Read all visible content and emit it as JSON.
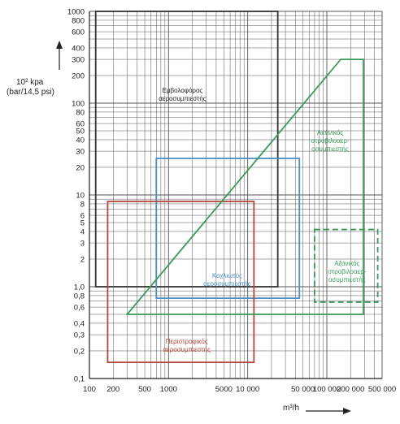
{
  "chart_data": {
    "type": "area",
    "xscale": "log",
    "yscale": "log",
    "xlim": [
      100,
      500000
    ],
    "ylim": [
      0.1,
      1000
    ],
    "grid": true,
    "ylabel_line1": "10² kpa",
    "ylabel_line2": "(bar/14,5  psi)",
    "xunit": "m³/h",
    "x_ticks": [
      {
        "value": 100,
        "label": "100"
      },
      {
        "value": 200,
        "label": "200"
      },
      {
        "value": 500,
        "label": "500"
      },
      {
        "value": 1000,
        "label": "1000"
      },
      {
        "value": 5000,
        "label": "5000"
      },
      {
        "value": 10000,
        "label": "10 000"
      },
      {
        "value": 50000,
        "label": "50 000"
      },
      {
        "value": 100000,
        "label": "100 000"
      },
      {
        "value": 200000,
        "label": "200 000"
      },
      {
        "value": 500000,
        "label": "500 000"
      }
    ],
    "y_ticks": [
      {
        "value": 1000,
        "label": "1000"
      },
      {
        "value": 800,
        "label": "800"
      },
      {
        "value": 600,
        "label": "600"
      },
      {
        "value": 400,
        "label": "400"
      },
      {
        "value": 300,
        "label": "300"
      },
      {
        "value": 200,
        "label": "200"
      },
      {
        "value": 100,
        "label": "100"
      },
      {
        "value": 80,
        "label": "80"
      },
      {
        "value": 60,
        "label": "60"
      },
      {
        "value": 50,
        "label": "50"
      },
      {
        "value": 40,
        "label": "40"
      },
      {
        "value": 30,
        "label": "30"
      },
      {
        "value": 20,
        "label": "20"
      },
      {
        "value": 10,
        "label": "10"
      },
      {
        "value": 8,
        "label": "8"
      },
      {
        "value": 6,
        "label": "6"
      },
      {
        "value": 5,
        "label": "5"
      },
      {
        "value": 4,
        "label": "4"
      },
      {
        "value": 3,
        "label": "3"
      },
      {
        "value": 2,
        "label": "2"
      },
      {
        "value": 1,
        "label": "1,0"
      },
      {
        "value": 0.8,
        "label": "0,8"
      },
      {
        "value": 0.6,
        "label": "0,6"
      },
      {
        "value": 0.4,
        "label": "0,4"
      },
      {
        "value": 0.3,
        "label": "0,3"
      },
      {
        "value": 0.2,
        "label": "0,2"
      },
      {
        "value": 0.1,
        "label": "0,1"
      }
    ],
    "regions": [
      {
        "name": "Εμβολοφόρος αεροσυμπιεστής",
        "kind": "rect",
        "color": "#333333",
        "dashed": false,
        "x": [
          120,
          24000
        ],
        "y": [
          1.0,
          1000
        ],
        "label_at": [
          1500,
          130
        ]
      },
      {
        "name": "Κοχλιωτός αεροσυμπιεστής",
        "kind": "rect",
        "color": "#4a90c8",
        "dashed": false,
        "x": [
          700,
          45000
        ],
        "y": [
          0.75,
          25
        ],
        "label_at": [
          5500,
          1.25
        ]
      },
      {
        "name": "Περιστροφικός αεροσυμπιεστής",
        "kind": "rect",
        "color": "#b5453a",
        "dashed": false,
        "x": [
          170,
          12000
        ],
        "y": [
          0.15,
          8.5
        ],
        "label_at": [
          1700,
          0.24
        ]
      },
      {
        "name": "Ακτινικός στροβιλοαεροσυμπιεστής",
        "kind": "polygon",
        "color": "#3a9a5a",
        "dashed": false,
        "points": [
          [
            300,
            0.5
          ],
          [
            150000,
            300
          ],
          [
            290000,
            300
          ],
          [
            290000,
            0.5
          ]
        ],
        "label_at": [
          110000,
          45
        ]
      },
      {
        "name": "Αξονικός στροβιλοαεροσυμπιεστής",
        "kind": "rect",
        "color": "#3a9a5a",
        "dashed": true,
        "x": [
          70000,
          440000
        ],
        "y": [
          0.68,
          4.2
        ],
        "label_at": [
          180000,
          1.7
        ]
      }
    ]
  }
}
